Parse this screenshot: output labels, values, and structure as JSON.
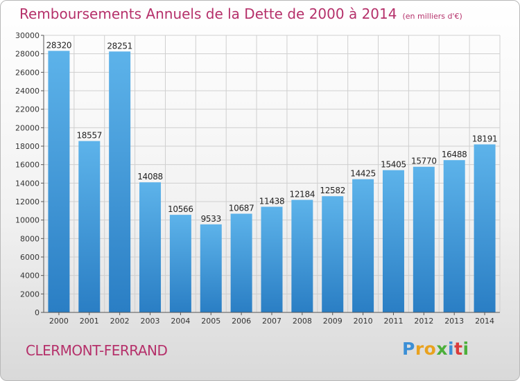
{
  "title": "Remboursements Annuels de la Dette de 2000 à 2014",
  "unit_note": "(en milliers d'€)",
  "city": "CLERMONT-FERRAND",
  "logo": {
    "letters": [
      "P",
      "r",
      "o",
      "x",
      "i",
      "t",
      "i"
    ],
    "colors": [
      "#3b8fd6",
      "#e9a21f",
      "#e9a21f",
      "#4caf3a",
      "#3b8fd6",
      "#d93b3b",
      "#4caf3a"
    ]
  },
  "colors": {
    "bar_light": "#5db3ea",
    "bar_dark": "#2a7ec4",
    "title": "#b5306a",
    "grid": "#cfcfcf"
  },
  "chart_data": {
    "type": "bar",
    "title": "Remboursements Annuels de la Dette de 2000 à 2014",
    "categories": [
      "2000",
      "2001",
      "2002",
      "2003",
      "2004",
      "2005",
      "2006",
      "2007",
      "2008",
      "2009",
      "2010",
      "2011",
      "2012",
      "2013",
      "2014"
    ],
    "values": [
      28320,
      18557,
      28251,
      14088,
      10566,
      9533,
      10687,
      11438,
      12184,
      12582,
      14425,
      15405,
      15770,
      16488,
      18191
    ],
    "ylim": [
      0,
      30000
    ],
    "yticks": [
      0,
      2000,
      4000,
      6000,
      8000,
      10000,
      12000,
      14000,
      16000,
      18000,
      20000,
      22000,
      24000,
      26000,
      28000,
      30000
    ],
    "grid": true,
    "data_labels": true
  }
}
